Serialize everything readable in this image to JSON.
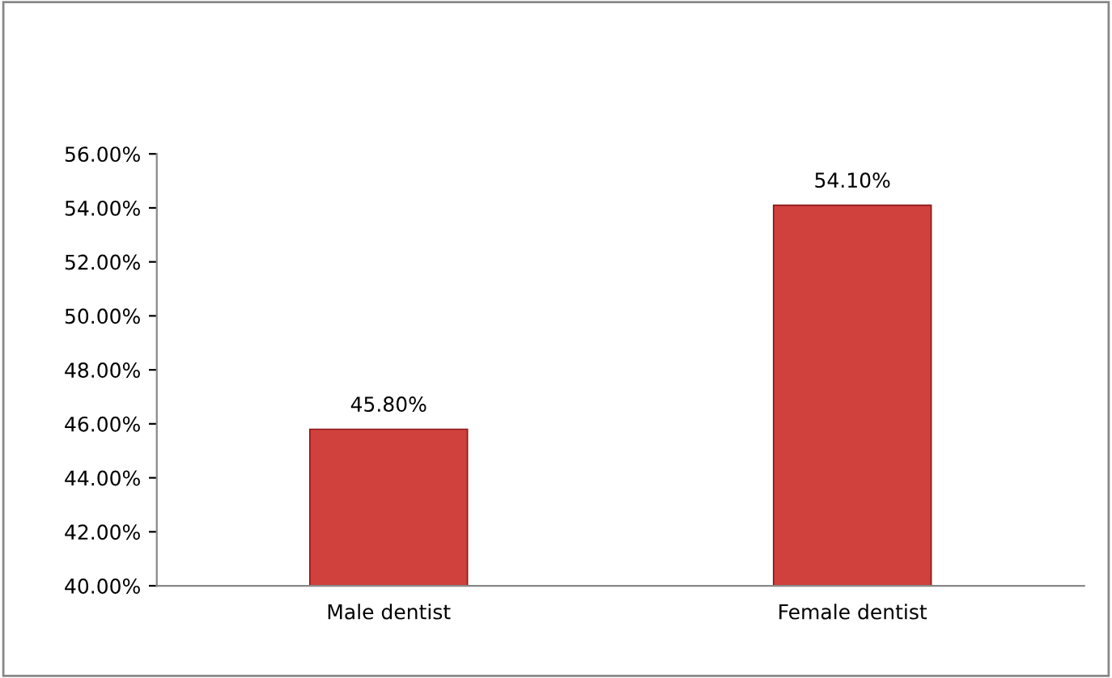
{
  "chart_data": {
    "type": "bar",
    "categories": [
      "Male dentist",
      "Female dentist"
    ],
    "values": [
      45.8,
      54.1
    ],
    "value_labels": [
      "45.80%",
      "54.10%"
    ],
    "color": "#d0403c",
    "ylim": [
      40,
      56
    ],
    "yticks": [
      {
        "value": 40,
        "label": "40.00%"
      },
      {
        "value": 42,
        "label": "42.00%"
      },
      {
        "value": 44,
        "label": "44.00%"
      },
      {
        "value": 46,
        "label": "46.00%"
      },
      {
        "value": 48,
        "label": "48.00%"
      },
      {
        "value": 50,
        "label": "50.00%"
      },
      {
        "value": 52,
        "label": "52.00%"
      },
      {
        "value": 54,
        "label": "54.00%"
      },
      {
        "value": 56,
        "label": "56.00%"
      }
    ],
    "grid": false,
    "legend": false
  }
}
